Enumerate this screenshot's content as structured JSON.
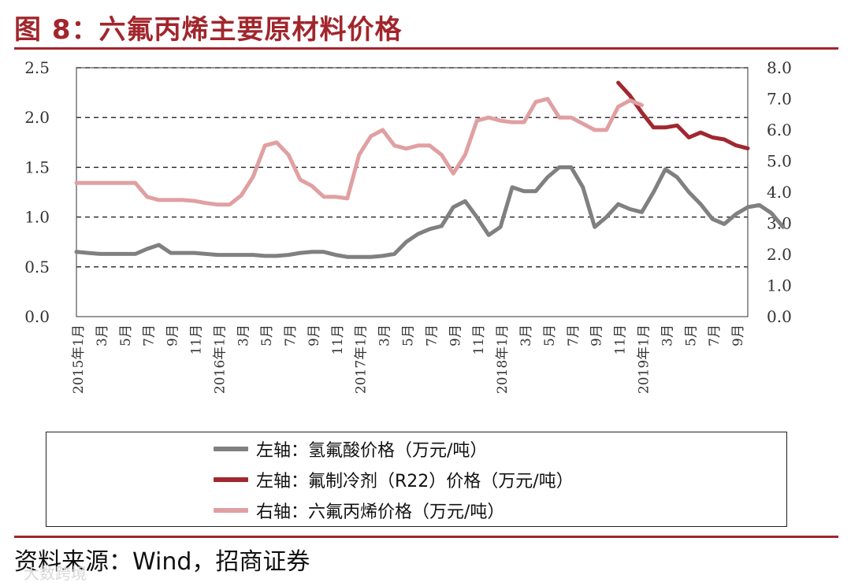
{
  "title": "图 8：六氟丙烯主要原材料价格",
  "source": "资料来源：Wind，招商证券",
  "watermark": "大数跨境",
  "colors": {
    "brand": "#a1262c",
    "hf": "#808080",
    "r22": "#a0282f",
    "hfp": "#e0a0a2"
  },
  "chart_data": {
    "type": "line",
    "left_axis": {
      "ticks": [
        "0.0",
        "0.5",
        "1.0",
        "1.5",
        "2.0",
        "2.5"
      ],
      "ylim": [
        0,
        2.5
      ]
    },
    "right_axis": {
      "ticks": [
        "0.0",
        "1.0",
        "2.0",
        "3.0",
        "4.0",
        "5.0",
        "6.0",
        "7.0",
        "8.0"
      ],
      "ylim": [
        0,
        8
      ]
    },
    "x_tick_labels": [
      "2015年1月",
      "3月",
      "5月",
      "7月",
      "9月",
      "11月",
      "2016年1月",
      "3月",
      "5月",
      "7月",
      "9月",
      "11月",
      "2017年1月",
      "3月",
      "5月",
      "7月",
      "9月",
      "11月",
      "2018年1月",
      "3月",
      "5月",
      "7月",
      "9月",
      "11月",
      "2019年1月",
      "3月",
      "5月",
      "7月",
      "9月"
    ],
    "grid": "horizontal dashed",
    "legend_position": "bottom",
    "series": [
      {
        "name": "左轴：氢氟酸价格（万元/吨）",
        "axis": "left",
        "color": "#808080",
        "values": [
          0.65,
          0.64,
          0.63,
          0.63,
          0.63,
          0.63,
          0.68,
          0.72,
          0.64,
          0.64,
          0.64,
          0.63,
          0.62,
          0.62,
          0.62,
          0.62,
          0.61,
          0.61,
          0.62,
          0.64,
          0.65,
          0.65,
          0.62,
          0.6,
          0.6,
          0.6,
          0.61,
          0.63,
          0.75,
          0.83,
          0.88,
          0.91,
          1.1,
          1.16,
          1.0,
          0.82,
          0.9,
          1.3,
          1.26,
          1.26,
          1.4,
          1.5,
          1.5,
          1.3,
          0.9,
          1.0,
          1.13,
          1.08,
          1.05,
          1.25,
          1.48,
          1.4,
          1.25,
          1.13,
          0.98,
          0.93,
          1.03,
          1.1,
          1.12,
          1.04,
          0.9
        ]
      },
      {
        "name": "左轴：氟制冷剂（R22）价格（万元/吨）",
        "axis": "left",
        "color": "#a0282f",
        "start_month_index": 46,
        "values": [
          2.35,
          2.22,
          2.05,
          1.9,
          1.9,
          1.92,
          1.8,
          1.85,
          1.8,
          1.78,
          1.72,
          1.69
        ]
      },
      {
        "name": "右轴：六氟丙烯价格（万元/吨）",
        "axis": "right",
        "color": "#e0a0a2",
        "values": [
          4.3,
          4.3,
          4.3,
          4.3,
          4.3,
          4.3,
          3.85,
          3.75,
          3.75,
          3.75,
          3.72,
          3.65,
          3.6,
          3.6,
          3.9,
          4.5,
          5.5,
          5.6,
          5.2,
          4.4,
          4.2,
          3.85,
          3.85,
          3.8,
          5.2,
          5.8,
          6.0,
          5.5,
          5.4,
          5.5,
          5.5,
          5.2,
          4.6,
          5.2,
          6.3,
          6.4,
          6.3,
          6.25,
          6.25,
          6.9,
          7.0,
          6.4,
          6.4,
          6.2,
          6.0,
          6.0,
          6.75,
          6.95,
          6.8
        ]
      }
    ]
  }
}
